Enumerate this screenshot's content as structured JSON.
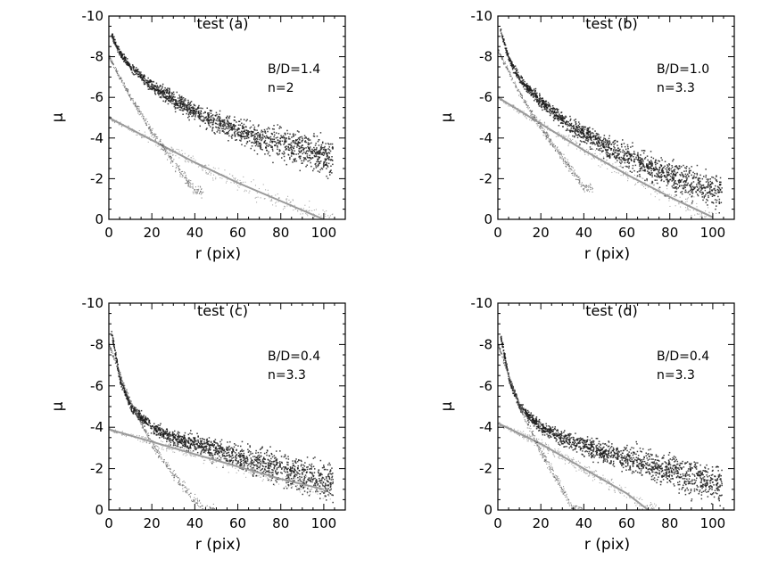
{
  "chart_data": [
    {
      "type": "scatter",
      "title": "test (a)",
      "xlabel": "r (pix)",
      "ylabel": "μ",
      "xlim": [
        0,
        110
      ],
      "ylim": [
        0,
        -10
      ],
      "xticks": [
        "0",
        "20",
        "40",
        "60",
        "80",
        "100"
      ],
      "yticks": [
        "-10",
        "-8",
        "-6",
        "-4",
        "-2",
        "0"
      ],
      "annotations": [
        "B/D=1.4",
        "n=2"
      ],
      "series": [
        {
          "role": "total",
          "color": "#1c1c1c",
          "x": [
            1,
            5,
            10,
            20,
            30,
            40,
            50,
            60,
            70,
            80,
            90,
            100
          ],
          "y": [
            -9.1,
            -8.2,
            -7.5,
            -6.6,
            -5.9,
            -5.3,
            -4.8,
            -4.4,
            -4.0,
            -3.7,
            -3.4,
            -3.1
          ]
        },
        {
          "role": "disk",
          "color": "#8c8c8c",
          "x": [
            0,
            20,
            40,
            60,
            80,
            100
          ],
          "y": [
            -5.0,
            -3.9,
            -2.8,
            -1.8,
            -0.9,
            0.0
          ]
        },
        {
          "role": "bulge",
          "color": "#5a5a5a",
          "x": [
            0,
            10,
            20,
            30,
            40
          ],
          "y": [
            -8.0,
            -6.0,
            -4.3,
            -2.8,
            -1.4
          ]
        }
      ]
    },
    {
      "type": "scatter",
      "title": "test (b)",
      "xlabel": "r (pix)",
      "ylabel": "μ",
      "xlim": [
        0,
        110
      ],
      "ylim": [
        0,
        -10
      ],
      "xticks": [
        "0",
        "20",
        "40",
        "60",
        "80",
        "100"
      ],
      "yticks": [
        "-10",
        "-8",
        "-6",
        "-4",
        "-2",
        "0"
      ],
      "annotations": [
        "B/D=1.0",
        "n=3.3"
      ],
      "series": [
        {
          "role": "total",
          "color": "#1c1c1c",
          "x": [
            1,
            5,
            10,
            20,
            30,
            40,
            50,
            60,
            70,
            80,
            90,
            100
          ],
          "y": [
            -9.3,
            -7.9,
            -6.9,
            -5.8,
            -4.9,
            -4.2,
            -3.6,
            -3.1,
            -2.6,
            -2.2,
            -1.8,
            -1.4
          ]
        },
        {
          "role": "disk",
          "color": "#8c8c8c",
          "x": [
            0,
            20,
            40,
            60,
            80,
            100
          ],
          "y": [
            -6.0,
            -4.7,
            -3.4,
            -2.2,
            -1.1,
            -0.1
          ]
        },
        {
          "role": "bulge",
          "color": "#5a5a5a",
          "x": [
            0,
            10,
            20,
            30,
            40
          ],
          "y": [
            -8.3,
            -6.2,
            -4.5,
            -3.0,
            -1.6
          ]
        }
      ]
    },
    {
      "type": "scatter",
      "title": "test (c)",
      "xlabel": "r (pix)",
      "ylabel": "μ",
      "xlim": [
        0,
        110
      ],
      "ylim": [
        0,
        -10
      ],
      "xticks": [
        "0",
        "20",
        "40",
        "60",
        "80",
        "100"
      ],
      "yticks": [
        "-10",
        "-8",
        "-6",
        "-4",
        "-2",
        "0"
      ],
      "annotations": [
        "B/D=0.4",
        "n=3.3"
      ],
      "series": [
        {
          "role": "total",
          "color": "#1c1c1c",
          "x": [
            1,
            5,
            10,
            20,
            30,
            40,
            50,
            60,
            70,
            80,
            90,
            100
          ],
          "y": [
            -8.6,
            -6.3,
            -5.0,
            -4.0,
            -3.5,
            -3.2,
            -2.9,
            -2.6,
            -2.3,
            -2.0,
            -1.7,
            -1.4
          ]
        },
        {
          "role": "disk",
          "color": "#8c8c8c",
          "x": [
            0,
            20,
            40,
            60,
            80,
            100
          ],
          "y": [
            -3.9,
            -3.3,
            -2.7,
            -2.1,
            -1.5,
            -1.0
          ]
        },
        {
          "role": "bulge",
          "color": "#5a5a5a",
          "x": [
            0,
            10,
            20,
            30,
            40,
            45
          ],
          "y": [
            -8.0,
            -5.2,
            -3.2,
            -1.7,
            -0.5,
            0.0
          ]
        }
      ]
    },
    {
      "type": "scatter",
      "title": "test (d)",
      "xlabel": "r (pix)",
      "ylabel": "μ",
      "xlim": [
        0,
        110
      ],
      "ylim": [
        0,
        -10
      ],
      "xticks": [
        "0",
        "20",
        "40",
        "60",
        "80",
        "100"
      ],
      "yticks": [
        "-10",
        "-8",
        "-6",
        "-4",
        "-2",
        "0"
      ],
      "annotations": [
        "B/D=0.4",
        "n=3.3"
      ],
      "series": [
        {
          "role": "total",
          "color": "#1c1c1c",
          "x": [
            1,
            5,
            10,
            20,
            30,
            40,
            50,
            60,
            70,
            80,
            90,
            100
          ],
          "y": [
            -8.5,
            -6.3,
            -5.0,
            -4.0,
            -3.5,
            -3.1,
            -2.8,
            -2.5,
            -2.2,
            -1.9,
            -1.6,
            -1.3
          ]
        },
        {
          "role": "disk",
          "color": "#8c8c8c",
          "x": [
            0,
            20,
            40,
            60,
            70
          ],
          "y": [
            -4.2,
            -3.2,
            -2.0,
            -0.8,
            0.0
          ]
        },
        {
          "role": "bulge",
          "color": "#5a5a5a",
          "x": [
            0,
            10,
            20,
            30,
            35
          ],
          "y": [
            -8.0,
            -5.0,
            -2.8,
            -1.0,
            0.0
          ]
        }
      ]
    }
  ]
}
